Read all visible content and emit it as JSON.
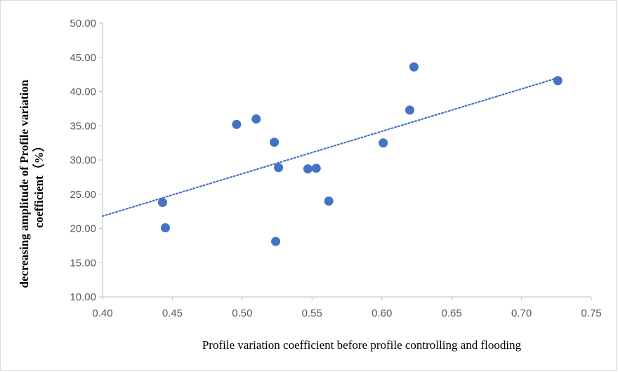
{
  "chart_data": {
    "type": "scatter",
    "title": "",
    "xlabel": "Profile variation coefficient before profile controlling and flooding",
    "ylabel_line1": "decreasing amplitude of Profile variation",
    "ylabel_line2": "coefficient（%）",
    "xlim": [
      0.4,
      0.75
    ],
    "ylim": [
      10.0,
      50.0
    ],
    "x_ticks": [
      "0.40",
      "0.45",
      "0.50",
      "0.55",
      "0.60",
      "0.65",
      "0.70",
      "0.75"
    ],
    "y_ticks": [
      "10.00",
      "15.00",
      "20.00",
      "25.00",
      "30.00",
      "35.00",
      "40.00",
      "45.00",
      "50.00"
    ],
    "grid": false,
    "legend": "none",
    "point_color": "#4472c4",
    "trendline": {
      "style": "dotted",
      "color": "#4472c4",
      "x": [
        0.4,
        0.726
      ],
      "y": [
        21.8,
        42.0
      ]
    },
    "points": [
      {
        "x": 0.443,
        "y": 23.8
      },
      {
        "x": 0.445,
        "y": 20.1
      },
      {
        "x": 0.496,
        "y": 35.2
      },
      {
        "x": 0.51,
        "y": 36.0
      },
      {
        "x": 0.523,
        "y": 32.6
      },
      {
        "x": 0.524,
        "y": 18.1
      },
      {
        "x": 0.526,
        "y": 28.9
      },
      {
        "x": 0.547,
        "y": 28.7
      },
      {
        "x": 0.553,
        "y": 28.8
      },
      {
        "x": 0.562,
        "y": 24.0
      },
      {
        "x": 0.601,
        "y": 32.5
      },
      {
        "x": 0.62,
        "y": 37.3
      },
      {
        "x": 0.623,
        "y": 43.6
      },
      {
        "x": 0.726,
        "y": 41.6
      }
    ]
  }
}
